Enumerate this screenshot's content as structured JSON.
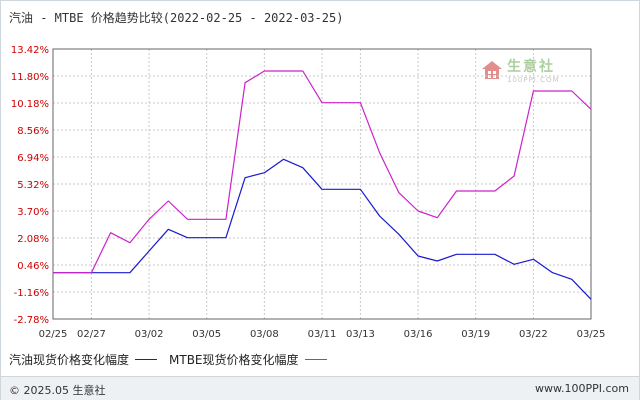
{
  "header": {
    "title": "汽油 - MTBE 价格趋势比较(2022-02-25 - 2022-03-25)"
  },
  "watermark": {
    "main": "生意社",
    "sub": "100PPI.COM"
  },
  "footer": {
    "copyright": "© 2025.05 生意社",
    "url": "www.100PPI.com"
  },
  "colors": {
    "gasoline": "#1a1acc",
    "mtbe": "#cc22cc",
    "grid": "#c8c8c8",
    "axis": "#666666"
  },
  "chart_data": {
    "type": "line",
    "title": "汽油 - MTBE 价格趋势比较(2022-02-25 - 2022-03-25)",
    "xlabel": "",
    "ylabel": "",
    "x_ticks": [
      "02/25",
      "02/27",
      "03/02",
      "03/05",
      "03/08",
      "03/11",
      "03/13",
      "03/16",
      "03/19",
      "03/22",
      "03/25"
    ],
    "y_ticks": [
      "13.42%",
      "11.80%",
      "10.18%",
      "8.56%",
      "6.94%",
      "5.32%",
      "3.70%",
      "2.08%",
      "0.46%",
      "-1.16%",
      "-2.78%"
    ],
    "ylim": [
      -2.78,
      13.42
    ],
    "grid": true,
    "legend_position": "bottom-left",
    "x_dates": [
      "02/25",
      "02/26",
      "02/27",
      "02/28",
      "03/01",
      "03/02",
      "03/03",
      "03/04",
      "03/05",
      "03/06",
      "03/07",
      "03/08",
      "03/09",
      "03/10",
      "03/11",
      "03/12",
      "03/13",
      "03/14",
      "03/15",
      "03/16",
      "03/17",
      "03/18",
      "03/19",
      "03/20",
      "03/21",
      "03/22",
      "03/23",
      "03/24",
      "03/25"
    ],
    "x_index": [
      0,
      1,
      2,
      3,
      4,
      5,
      6,
      7,
      8,
      9,
      10,
      11,
      12,
      13,
      14,
      15,
      16,
      17,
      18,
      19,
      20,
      21,
      22,
      23,
      24,
      25,
      26,
      27,
      28
    ],
    "x_labels_at": [
      0,
      2,
      5,
      8,
      11,
      14,
      16,
      19,
      22,
      25,
      28
    ],
    "series": [
      {
        "name": "汽油现货价格变化幅度",
        "color": "#1a1acc",
        "x": [
          0,
          2,
          4,
          6,
          7,
          9,
          10,
          11,
          12,
          13,
          14,
          15,
          16,
          17,
          18,
          19,
          20,
          21,
          22,
          23,
          24,
          25,
          26,
          27,
          28
        ],
        "values": [
          0.0,
          0.0,
          0.0,
          2.6,
          2.1,
          2.1,
          5.7,
          6.0,
          6.8,
          6.3,
          5.0,
          5.0,
          5.0,
          3.4,
          2.3,
          1.0,
          0.7,
          1.1,
          1.1,
          1.1,
          0.5,
          0.8,
          0.0,
          -0.4,
          -1.6
        ]
      },
      {
        "name": "MTBE现货价格变化幅度",
        "color": "#cc22cc",
        "x": [
          0,
          2,
          3,
          4,
          5,
          6,
          7,
          9,
          10,
          11,
          12,
          13,
          14,
          15,
          16,
          17,
          18,
          19,
          20,
          21,
          22,
          23,
          24,
          25,
          26,
          27,
          28
        ],
        "values": [
          0.0,
          0.0,
          2.4,
          1.8,
          3.2,
          4.3,
          3.2,
          3.2,
          11.4,
          12.1,
          12.1,
          12.1,
          10.2,
          10.2,
          10.2,
          7.2,
          4.8,
          3.7,
          3.3,
          4.9,
          4.9,
          4.9,
          5.8,
          10.9,
          10.9,
          10.9,
          9.8
        ]
      }
    ]
  }
}
